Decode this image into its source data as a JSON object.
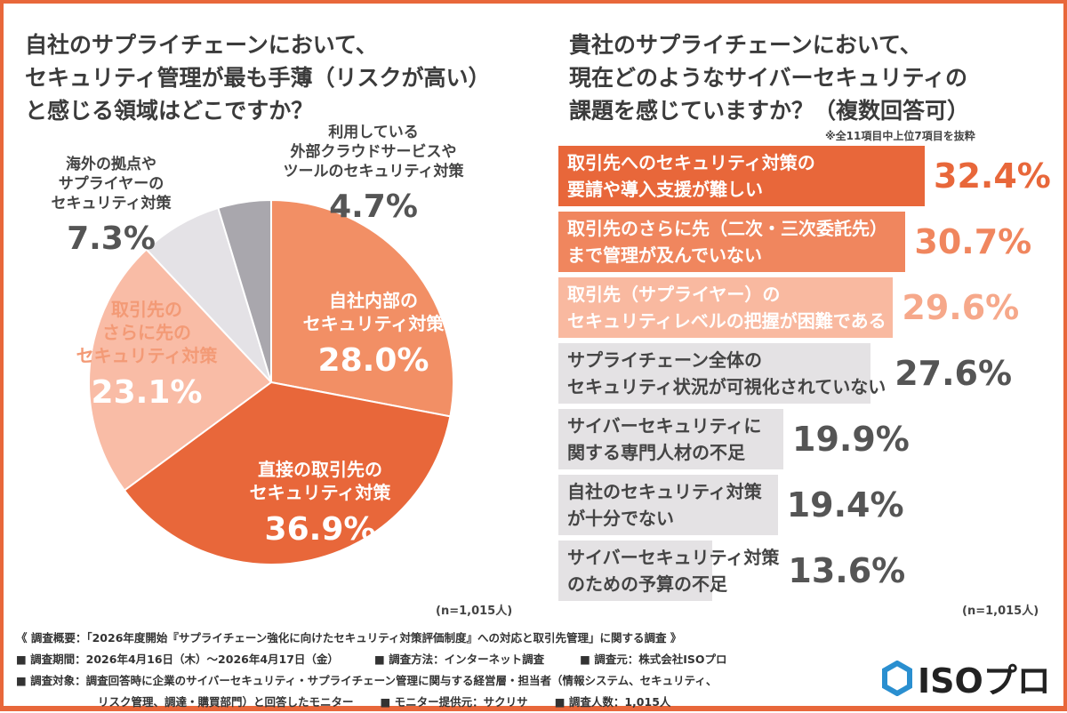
{
  "left": {
    "title": "自社のサプライチェーンにおいて、\nセキュリティ管理が最も手薄（リスクが高い）\nと感じる領域はどこですか？",
    "n": "(n=1,015人)"
  },
  "right": {
    "title": "貴社のサプライチェーンにおいて、\n現在どのようなサイバーセキュリティの\n課題を感じていますか？（複数回答可）",
    "note": "※全11項目中上位7項目を抜粋",
    "n": "(n=1,015人)"
  },
  "chart_data": [
    {
      "type": "pie",
      "title": "自社のサプライチェーンにおいて、セキュリティ管理が最も手薄（リスクが高い）と感じる領域はどこですか？",
      "slices": [
        {
          "label": "自社内部の\nセキュリティ対策",
          "value": 28.0,
          "display": "28.0%",
          "color": "#f28f65"
        },
        {
          "label": "直接の取引先の\nセキュリティ対策",
          "value": 36.9,
          "display": "36.9%",
          "color": "#e8673a"
        },
        {
          "label": "取引先の\nさらに先の\nセキュリティ対策",
          "value": 23.1,
          "display": "23.1%",
          "color": "#f9bca6"
        },
        {
          "label": "海外の拠点や\nサプライヤーの\nセキュリティ対策",
          "value": 7.3,
          "display": "7.3%",
          "color": "#e4e2e6"
        },
        {
          "label": "利用している\n外部クラウドサービスや\nツールのセキュリティ対策",
          "value": 4.7,
          "display": "4.7%",
          "color": "#a9a7ad"
        }
      ]
    },
    {
      "type": "bar",
      "orientation": "horizontal",
      "title": "貴社のサプライチェーンにおいて、現在どのようなサイバーセキュリティの課題を感じていますか？（複数回答可）",
      "categories": [
        "取引先へのセキュリティ対策の\n要請や導入支援が難しい",
        "取引先のさらに先（二次・三次委託先）\nまで管理が及んでいない",
        "取引先（サプライヤー）の\nセキュリティレベルの把握が困難である",
        "サプライチェーン全体の\nセキュリティ状況が可視化されていない",
        "サイバーセキュリティに\n関する専門人材の不足",
        "自社のセキュリティ対策\nが十分でない",
        "サイバーセキュリティ対策\nのための予算の不足"
      ],
      "values": [
        32.4,
        30.7,
        29.6,
        27.6,
        19.9,
        19.4,
        13.6
      ],
      "display": [
        "32.4%",
        "30.7%",
        "29.6%",
        "27.6%",
        "19.9%",
        "19.4%",
        "13.6%"
      ],
      "bar_colors": [
        "#e8673a",
        "#f0865e",
        "#f9b9a0",
        "#e4e2e4",
        "#e4e2e4",
        "#e4e2e4",
        "#e4e2e4"
      ],
      "value_colors": [
        "#e8673a",
        "#f0865e",
        "#f6a88a",
        "#555",
        "#555",
        "#555",
        "#555"
      ],
      "label_colors": [
        "#fff",
        "#fff",
        "#fff",
        "#444",
        "#444",
        "#444",
        "#444"
      ]
    }
  ],
  "footer": {
    "line1": "《 調査概要：「2026年度開始『サプライチェーン強化に向けたセキュリティ対策評価制度』への対応と取引先管理」に関する調査 》",
    "period": "■ 調査期間：2026年4月16日（木）〜2026年4月17日（金）",
    "method": "■ 調査方法：インターネット調査",
    "source": "■ 調査元：株式会社ISOプロ",
    "target1": "■ 調査対象：調査回答時に企業のサイバーセキュリティ・サプライチェーン管理に関与する経営層・担当者（情報システム、セキュリティ、",
    "target2": "リスク管理、調達・購買部門）と回答したモニター",
    "provider": "■ モニター提供元：サクリサ",
    "count": "■ 調査人数：1,015人"
  },
  "logo": {
    "text": "ISOプロ",
    "color": "#2a8fd0"
  }
}
